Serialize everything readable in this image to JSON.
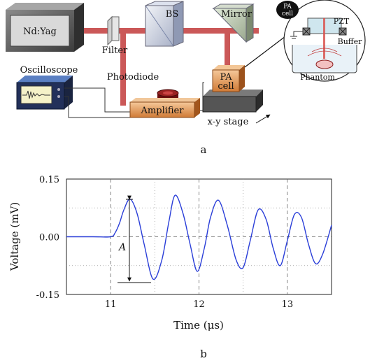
{
  "setup": {
    "laser": "Nd:Yag",
    "filter": "Filter",
    "beam_splitter": "BS",
    "mirror": "Mirror",
    "photodiode": "Photodiode",
    "oscilloscope": "Oscilloscope",
    "amplifier": "Amplifier",
    "pa_cell": [
      "PA",
      "cell"
    ],
    "stage": "x-y stage",
    "inset": {
      "badge": [
        "PA",
        "cell"
      ],
      "pzt": "PZT",
      "buffer": "Buffer",
      "phantom": "Phantom"
    },
    "panel_label": "a"
  },
  "chart_data": {
    "type": "line",
    "xlabel": "Time (μs)",
    "ylabel": "Voltage (mV)",
    "xlim": [
      10.5,
      13.5
    ],
    "ylim": [
      -0.15,
      0.15
    ],
    "xticks": [
      "11",
      "12",
      "13"
    ],
    "yticks": [
      "0.15",
      "0.00",
      "-0.15"
    ],
    "grid": true,
    "color": "#2a3ed8",
    "annotation": "A",
    "series": [
      {
        "x": [
          10.5,
          10.8,
          11.0,
          11.05,
          11.1,
          11.15,
          11.22,
          11.3,
          11.38,
          11.48,
          11.58,
          11.66,
          11.73,
          11.82,
          11.9,
          11.98,
          12.06,
          12.13,
          12.22,
          12.32,
          12.42,
          12.5,
          12.58,
          12.67,
          12.76,
          12.84,
          12.92,
          13.0,
          13.08,
          13.16,
          13.24,
          13.32,
          13.4,
          13.5
        ],
        "y": [
          0.0,
          0.0,
          0.0,
          0.01,
          0.035,
          0.07,
          0.098,
          0.06,
          -0.02,
          -0.11,
          -0.06,
          0.04,
          0.108,
          0.06,
          -0.02,
          -0.09,
          -0.03,
          0.05,
          0.095,
          0.03,
          -0.06,
          -0.08,
          -0.01,
          0.07,
          0.045,
          -0.03,
          -0.075,
          -0.01,
          0.058,
          0.05,
          -0.02,
          -0.07,
          -0.045,
          0.03
        ]
      }
    ],
    "panel_label": "b"
  }
}
